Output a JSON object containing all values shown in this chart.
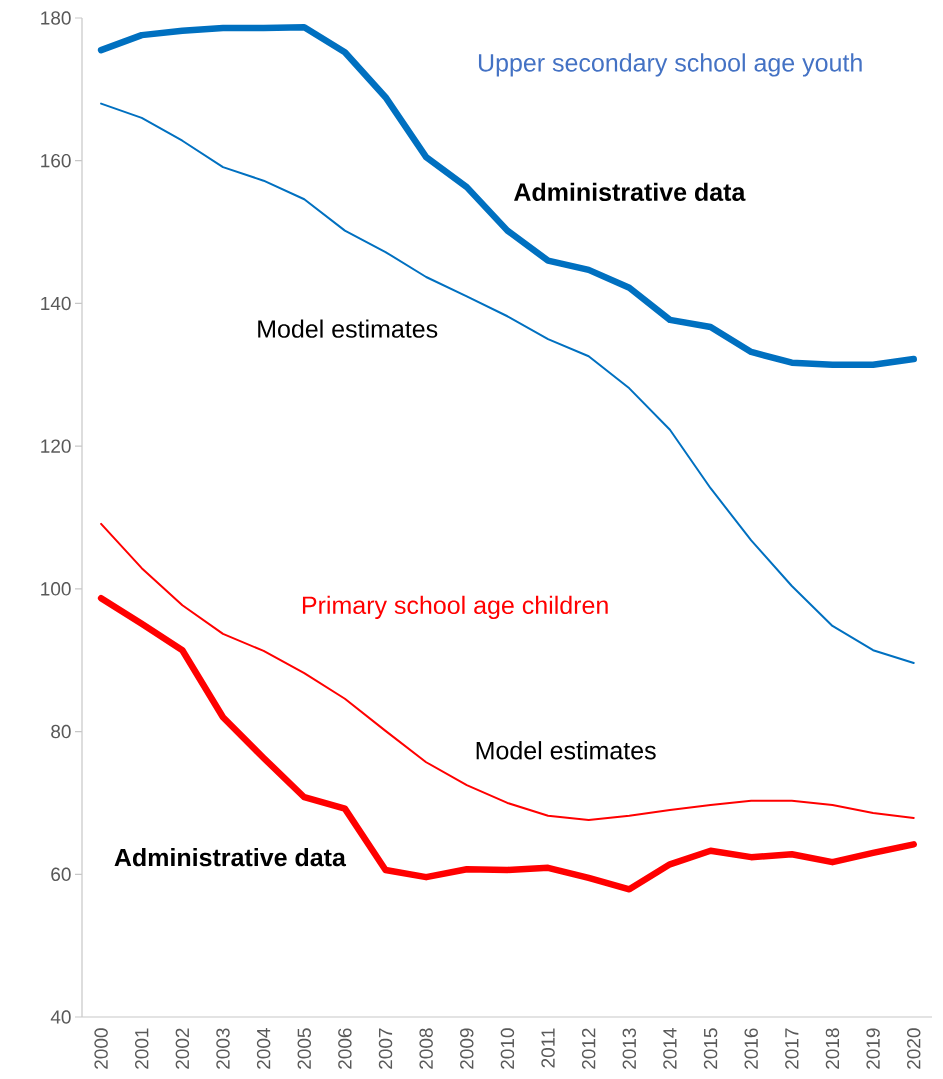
{
  "chart_data": {
    "type": "line",
    "categories": [
      "2000",
      "2001",
      "2002",
      "2003",
      "2004",
      "2005",
      "2006",
      "2007",
      "2008",
      "2009",
      "2010",
      "2011",
      "2012",
      "2013",
      "2014",
      "2015",
      "2016",
      "2017",
      "2018",
      "2019",
      "2020"
    ],
    "series": [
      {
        "color": "#0070c0",
        "values": [
          175.5,
          177.6,
          178.2,
          178.6,
          178.6,
          178.7,
          175.2,
          168.9,
          160.5,
          156.3,
          150.2,
          146,
          144.7,
          142.2,
          137.7,
          136.7,
          133.2,
          131.7,
          131.4,
          131.4,
          132.2
        ]
      },
      {
        "color": "#0070c0",
        "values": [
          168,
          166,
          162.8,
          159.1,
          157.2,
          154.6,
          150.2,
          147.2,
          143.7,
          141,
          138.2,
          135,
          132.6,
          128.1,
          122.3,
          114.1,
          106.8,
          100.4,
          94.8,
          91.4,
          89.6
        ]
      },
      {
        "color": "#ff0000",
        "values": [
          109.1,
          102.9,
          97.7,
          93.7,
          91.3,
          88.2,
          84.6,
          80.1,
          75.7,
          72.5,
          70,
          68.2,
          67.6,
          68.2,
          69,
          69.7,
          70.3,
          70.3,
          69.7,
          68.6,
          67.9
        ]
      },
      {
        "color": "#ff0000",
        "values": [
          98.7,
          95.1,
          91.4,
          82,
          76.3,
          70.8,
          69.2,
          60.6,
          59.6,
          60.7,
          60.6,
          60.9,
          59.5,
          57.9,
          61.4,
          63.3,
          62.4,
          62.8,
          61.7,
          63,
          64.2
        ]
      }
    ],
    "ylim": [
      40,
      180
    ],
    "yticks": [
      40,
      60,
      80,
      100,
      120,
      140,
      160,
      180
    ],
    "annotations": [
      "Upper secondary school age youth",
      "Administrative data",
      "Model estimates",
      "Primary school age children",
      "Model estimates",
      "Administrative data"
    ],
    "grid": false,
    "marker": "none",
    "line_style": "solid"
  }
}
